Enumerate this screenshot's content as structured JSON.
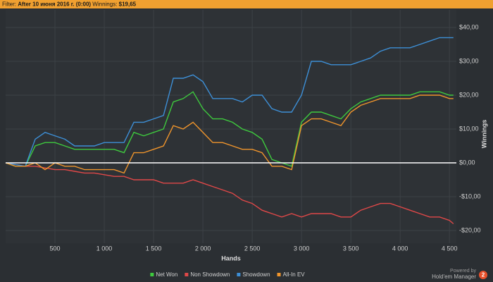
{
  "header": {
    "filter_label": "Filter:",
    "filter": "After 10 июня 2016 г. (0:00)",
    "winnings_label": "Winnings:",
    "winnings": "$19,65"
  },
  "footer": {
    "powered_by": "Powered by",
    "brand": "Hold'em Manager",
    "logo": "2"
  },
  "chart_data": {
    "type": "line",
    "x_label": "Hands",
    "y_label": "Winnings",
    "x": [
      0,
      100,
      200,
      300,
      400,
      500,
      600,
      700,
      800,
      900,
      1000,
      1100,
      1200,
      1300,
      1400,
      1500,
      1600,
      1700,
      1800,
      1900,
      2000,
      2100,
      2200,
      2300,
      2400,
      2500,
      2600,
      2700,
      2800,
      2900,
      3000,
      3100,
      3200,
      3300,
      3400,
      3500,
      3600,
      3700,
      3800,
      3900,
      4000,
      4100,
      4200,
      4300,
      4400,
      4500,
      4540
    ],
    "series": [
      {
        "name": "Net Won",
        "color": "#3ec93e",
        "values": [
          0,
          -1,
          -1,
          5,
          6,
          6,
          5,
          4,
          4,
          4,
          4,
          4,
          3,
          9,
          8,
          9,
          10,
          18,
          19,
          21,
          16,
          13,
          13,
          12,
          10,
          9,
          7,
          1,
          0,
          -1,
          12,
          15,
          15,
          14,
          13,
          16,
          18,
          19,
          20,
          20,
          20,
          20,
          21,
          21,
          21,
          20,
          20
        ]
      },
      {
        "name": "Non Showdown",
        "color": "#e04848",
        "values": [
          0,
          -0.5,
          -1,
          -1,
          -1.5,
          -2,
          -2,
          -2.5,
          -3,
          -3,
          -3.5,
          -4,
          -4,
          -5,
          -5,
          -5,
          -6,
          -6,
          -6,
          -5,
          -6,
          -7,
          -8,
          -9,
          -11,
          -12,
          -14,
          -15,
          -16,
          -15,
          -16,
          -15,
          -15,
          -15,
          -16,
          -16,
          -14,
          -13,
          -12,
          -12,
          -13,
          -14,
          -15,
          -16,
          -16,
          -17,
          -18
        ]
      },
      {
        "name": "Showdown",
        "color": "#3d8fd6",
        "values": [
          0,
          -0.5,
          -1,
          7,
          9,
          8,
          7,
          5,
          5,
          5,
          6,
          6,
          6,
          12,
          12,
          13,
          14,
          25,
          25,
          26,
          24,
          19,
          19,
          19,
          18,
          20,
          20,
          16,
          15,
          15,
          20,
          30,
          30,
          29,
          29,
          29,
          30,
          31,
          33,
          34,
          34,
          34,
          35,
          36,
          37,
          37,
          37
        ]
      },
      {
        "name": "All-In EV",
        "color": "#f0952c",
        "values": [
          0,
          -1,
          -1,
          0,
          -2,
          0,
          -1,
          -1,
          -2,
          -2,
          -2,
          -2,
          -3,
          3,
          3,
          4,
          5,
          11,
          10,
          12,
          9,
          6,
          6,
          5,
          4,
          4,
          3,
          -1,
          -1,
          -2,
          11,
          13,
          13,
          12,
          11,
          15,
          17,
          18,
          19,
          19,
          19,
          19,
          20,
          20,
          20,
          19,
          19
        ]
      }
    ],
    "xlim": [
      0,
      4570
    ],
    "xticks": [
      500,
      {
        "value": 1000,
        "label": "1 000"
      },
      {
        "value": 1500,
        "label": "1 500"
      },
      {
        "value": 2000,
        "label": "2 000"
      },
      {
        "value": 2500,
        "label": "2 500"
      },
      {
        "value": 3000,
        "label": "3 000"
      },
      {
        "value": 3500,
        "label": "3 500"
      },
      {
        "value": 4000,
        "label": "4 000"
      },
      {
        "value": 4500,
        "label": "4 500"
      }
    ],
    "ylim": [
      -23.75,
      45.2
    ],
    "yticks": [
      {
        "value": -20,
        "label": "-$20,00"
      },
      {
        "value": -10,
        "label": "-$10,00"
      },
      {
        "value": 0,
        "label": "$0,00"
      },
      {
        "value": 10,
        "label": "$10,00"
      },
      {
        "value": 20,
        "label": "$20,00"
      },
      {
        "value": 30,
        "label": "$30,00"
      },
      {
        "value": 40,
        "label": "$40,00"
      }
    ],
    "grid": true,
    "zero_line": true,
    "legend": "bottom"
  }
}
